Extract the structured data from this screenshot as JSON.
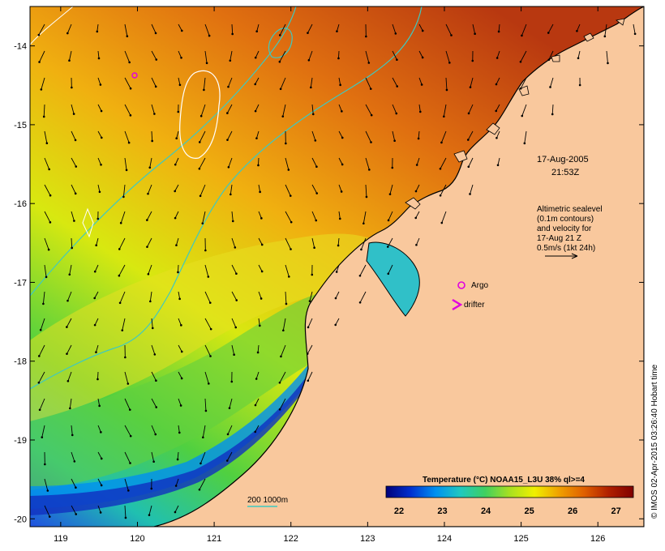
{
  "map": {
    "lon_ticks": [
      119,
      120,
      121,
      122,
      123,
      124,
      125,
      126
    ],
    "lat_ticks": [
      -14,
      -15,
      -16,
      -17,
      -18,
      -19,
      -20
    ],
    "lon_range": [
      118.6,
      126.6
    ],
    "lat_range": [
      -13.5,
      -20.1
    ],
    "colors": {
      "land": "#f9c89d",
      "coast": "#000000",
      "contour_sst": "#ffffff",
      "bathy": "#3ec9c0",
      "argo": "#e000e0",
      "drifter": "#e000e0"
    }
  },
  "annotations": {
    "date": "17-Aug-2005",
    "time": "21:53Z",
    "altimetry_line1": "Altimetric sealevel",
    "altimetry_line2": "(0.1m contours)",
    "altimetry_line3": "and velocity for",
    "altimetry_line4": "17-Aug 21 Z",
    "altimetry_line5": "0.5m/s (1kt 24h)",
    "argo_label": "Argo",
    "drifter_label": "drifter",
    "bathy_label": "200  1000m"
  },
  "colorbar": {
    "title": "Temperature (°C) NOAA15_L3U 38% ql>=4",
    "ticks": [
      "22",
      "23",
      "24",
      "25",
      "26",
      "27"
    ],
    "range": [
      21.7,
      27.4
    ],
    "stops": [
      "#00007a",
      "#0030d0",
      "#0090f0",
      "#20c8c0",
      "#40d060",
      "#a8e020",
      "#f0f000",
      "#f0a000",
      "#e06000",
      "#b02000",
      "#800000"
    ]
  },
  "credit": "© IMOS 02-Apr-2015 03:26:40 Hobart time"
}
